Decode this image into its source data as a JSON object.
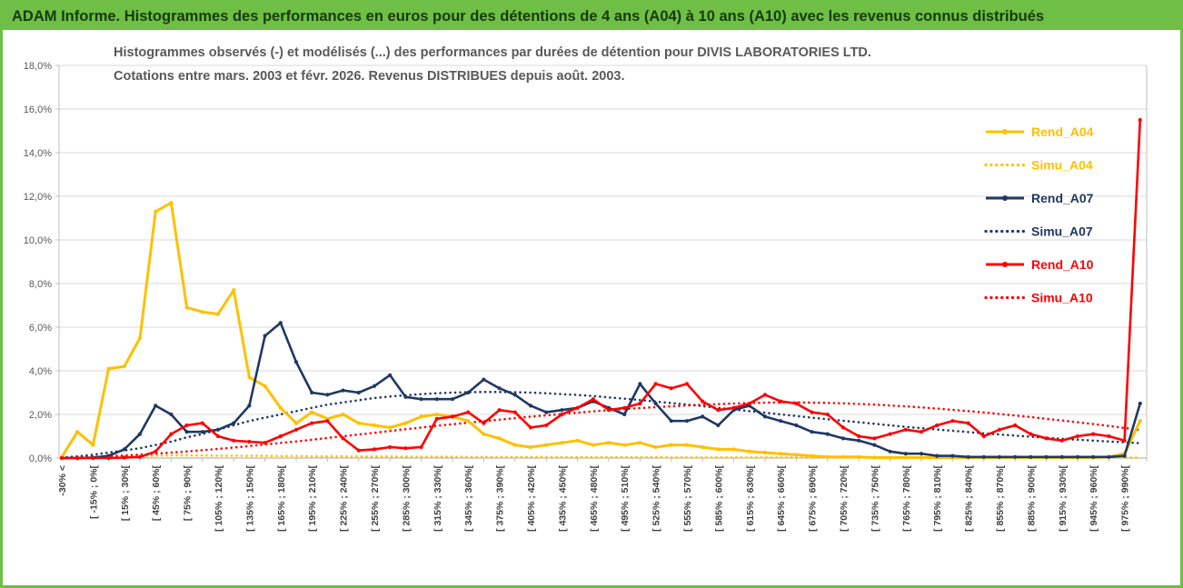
{
  "window": {
    "titlebar": {
      "title": "ADAM Informe. Histogrammes des performances en euros pour des détentions de 4 ans (A04) à 10 ans (A10) avec les revenus connus distribués",
      "background_color": "#6FBE45",
      "text_color": "#143A08"
    }
  },
  "chart_data": {
    "type": "line",
    "title_lines": [
      "Histogrammes observés (-) et modélisés (...) des performances par durées de détention pour DIVIS LABORATORIES LTD.",
      "Cotations entre mars. 2003 et févr. 2026. Revenus DISTRIBUES depuis août. 2003."
    ],
    "colors": {
      "grid": "#D9D9D9",
      "axis": "#BFBFBF",
      "chart_title": "#595959",
      "rend_a04": "#FFC000",
      "rend_a07": "#1F3864",
      "rend_a10": "#FF0000"
    },
    "legend": {
      "position": "right-inside",
      "entries": [
        "Rend_A04",
        "Simu_A04",
        "Rend_A07",
        "Simu_A07",
        "Rend_A10",
        "Simu_A10"
      ]
    },
    "y_axis": {
      "min": 0,
      "max": 18,
      "step": 2,
      "ticks": [
        "0,0%",
        "2,0%",
        "4,0%",
        "6,0%",
        "8,0%",
        "10,0%",
        "12,0%",
        "14,0%",
        "16,0%",
        "18,0%"
      ]
    },
    "x_axis": {
      "points_per_label": 2,
      "labels": [
        "-30% <",
        "[ -15% ; 0%[",
        "[ 15% ; 30%[",
        "[ 45% ; 60%[",
        "[ 75% ; 90%[",
        "[ 105% ; 120%[",
        "[ 135% ; 150%[",
        "[ 165% ; 180%[",
        "[ 195% ; 210%[",
        "[ 225% ; 240%[",
        "[ 255% ; 270%[",
        "[ 285% ; 300%[",
        "[ 315% ; 330%[",
        "[ 345% ; 360%[",
        "[ 375% ; 390%[",
        "[ 405% ; 420%[",
        "[ 435% ; 450%[",
        "[ 465% ; 480%[",
        "[ 495% ; 510%[",
        "[ 525% ; 540%[",
        "[ 555% ; 570%[",
        "[ 585% ; 600%[",
        "[ 615% ; 630%[",
        "[ 645% ; 660%[",
        "[ 675% ; 690%[",
        "[ 705% ; 720%[",
        "[ 735% ; 750%[",
        "[ 765% ; 780%[",
        "[ 795% ; 810%[",
        "[ 825% ; 840%[",
        "[ 855% ; 870%[",
        "[ 885% ; 900%[",
        "[ 915% ; 930%[",
        "[ 945% ; 960%[",
        "[ 975% ; 990%["
      ]
    },
    "series": [
      {
        "name": "Rend_A04",
        "color": "#FFC000",
        "style": "solid",
        "values": [
          0.05,
          1.2,
          0.6,
          4.1,
          4.2,
          5.5,
          11.3,
          11.7,
          6.9,
          6.7,
          6.6,
          7.7,
          3.7,
          3.3,
          2.3,
          1.6,
          2.1,
          1.8,
          2.0,
          1.6,
          1.5,
          1.4,
          1.6,
          1.9,
          2.0,
          1.9,
          1.7,
          1.1,
          0.9,
          0.6,
          0.5,
          0.6,
          0.7,
          0.8,
          0.6,
          0.7,
          0.6,
          0.7,
          0.5,
          0.6,
          0.6,
          0.5,
          0.4,
          0.4,
          0.3,
          0.25,
          0.2,
          0.15,
          0.1,
          0.05,
          0.05,
          0.05,
          0.02,
          0.02,
          0.02,
          0.02,
          0.02,
          0.02,
          0.02,
          0.02,
          0.02,
          0.02,
          0.02,
          0.02,
          0.02,
          0.02,
          0.02,
          0.05,
          0.2,
          1.7
        ]
      },
      {
        "name": "Simu_A04",
        "color": "#FFC000",
        "style": "dotted",
        "values": [
          0.02,
          0.03,
          0.05,
          0.07,
          0.09,
          0.1,
          0.11,
          0.12,
          0.12,
          0.12,
          0.11,
          0.11,
          0.1,
          0.1,
          0.09,
          0.09,
          0.08,
          0.08,
          0.08,
          0.07,
          0.07,
          0.07,
          0.06,
          0.06,
          0.06,
          0.06,
          0.05,
          0.05,
          0.05,
          0.05,
          0.05,
          0.05,
          0.04,
          0.04,
          0.04,
          0.04,
          0.04,
          0.04,
          0.04,
          0.03,
          0.03,
          0.03,
          0.03,
          0.03,
          0.03,
          0.03,
          0.03,
          0.03,
          0.03,
          0.03,
          0.02,
          0.02,
          0.02,
          0.02,
          0.02,
          0.02,
          0.02,
          0.02,
          0.02,
          0.02,
          0.02,
          0.02,
          0.02,
          0.02,
          0.02,
          0.02,
          0.02,
          0.02,
          0.02,
          0.02
        ]
      },
      {
        "name": "Rend_A07",
        "color": "#1F3864",
        "style": "solid",
        "values": [
          0,
          0,
          0.02,
          0.1,
          0.4,
          1.1,
          2.4,
          2.0,
          1.2,
          1.2,
          1.3,
          1.6,
          2.4,
          5.6,
          6.2,
          4.4,
          3.0,
          2.9,
          3.1,
          3.0,
          3.3,
          3.8,
          2.8,
          2.7,
          2.7,
          2.7,
          3.0,
          3.6,
          3.2,
          2.9,
          2.4,
          2.1,
          2.2,
          2.3,
          2.6,
          2.3,
          2.0,
          3.4,
          2.5,
          1.7,
          1.7,
          1.9,
          1.5,
          2.2,
          2.4,
          1.9,
          1.7,
          1.5,
          1.2,
          1.1,
          0.9,
          0.8,
          0.6,
          0.3,
          0.2,
          0.2,
          0.1,
          0.1,
          0.05,
          0.05,
          0.05,
          0.05,
          0.05,
          0.05,
          0.05,
          0.05,
          0.05,
          0.05,
          0.1,
          2.5
        ]
      },
      {
        "name": "Simu_A07",
        "color": "#1F3864",
        "style": "dotted",
        "values": [
          0.02,
          0.08,
          0.15,
          0.25,
          0.35,
          0.45,
          0.6,
          0.75,
          0.95,
          1.1,
          1.3,
          1.5,
          1.7,
          1.85,
          2.0,
          2.15,
          2.3,
          2.45,
          2.55,
          2.65,
          2.75,
          2.82,
          2.88,
          2.93,
          2.97,
          3.0,
          3.02,
          3.03,
          3.03,
          3.02,
          3.0,
          2.97,
          2.93,
          2.89,
          2.84,
          2.78,
          2.72,
          2.66,
          2.59,
          2.52,
          2.45,
          2.38,
          2.3,
          2.23,
          2.15,
          2.08,
          2.0,
          1.93,
          1.85,
          1.78,
          1.71,
          1.64,
          1.57,
          1.5,
          1.43,
          1.37,
          1.31,
          1.25,
          1.19,
          1.13,
          1.08,
          1.03,
          0.98,
          0.93,
          0.88,
          0.84,
          0.8,
          0.76,
          0.72,
          0.68
        ]
      },
      {
        "name": "Rend_A10",
        "color": "#FF0000",
        "style": "solid",
        "values": [
          0,
          0,
          0,
          0,
          0.02,
          0.05,
          0.3,
          1.1,
          1.5,
          1.6,
          1.0,
          0.8,
          0.75,
          0.7,
          1.0,
          1.3,
          1.6,
          1.7,
          0.9,
          0.35,
          0.4,
          0.5,
          0.45,
          0.5,
          1.8,
          1.9,
          2.1,
          1.6,
          2.2,
          2.1,
          1.4,
          1.5,
          2.0,
          2.3,
          2.7,
          2.2,
          2.3,
          2.5,
          3.4,
          3.2,
          3.4,
          2.6,
          2.2,
          2.3,
          2.5,
          2.9,
          2.6,
          2.5,
          2.1,
          2.0,
          1.4,
          1.0,
          0.9,
          1.1,
          1.3,
          1.2,
          1.5,
          1.7,
          1.6,
          1.0,
          1.3,
          1.5,
          1.1,
          0.9,
          0.8,
          1.0,
          1.1,
          1.0,
          0.8,
          15.5
        ]
      },
      {
        "name": "Simu_A10",
        "color": "#FF0000",
        "style": "dotted",
        "values": [
          0,
          0.02,
          0.05,
          0.08,
          0.12,
          0.16,
          0.2,
          0.25,
          0.3,
          0.36,
          0.42,
          0.48,
          0.55,
          0.62,
          0.69,
          0.76,
          0.84,
          0.92,
          1.0,
          1.08,
          1.16,
          1.24,
          1.32,
          1.4,
          1.48,
          1.55,
          1.62,
          1.69,
          1.76,
          1.83,
          1.9,
          1.96,
          2.02,
          2.08,
          2.14,
          2.19,
          2.24,
          2.29,
          2.33,
          2.37,
          2.41,
          2.44,
          2.47,
          2.5,
          2.52,
          2.54,
          2.55,
          2.55,
          2.54,
          2.53,
          2.51,
          2.48,
          2.45,
          2.41,
          2.37,
          2.32,
          2.27,
          2.21,
          2.15,
          2.09,
          2.02,
          1.95,
          1.88,
          1.8,
          1.72,
          1.64,
          1.56,
          1.47,
          1.38,
          1.29
        ]
      }
    ]
  }
}
